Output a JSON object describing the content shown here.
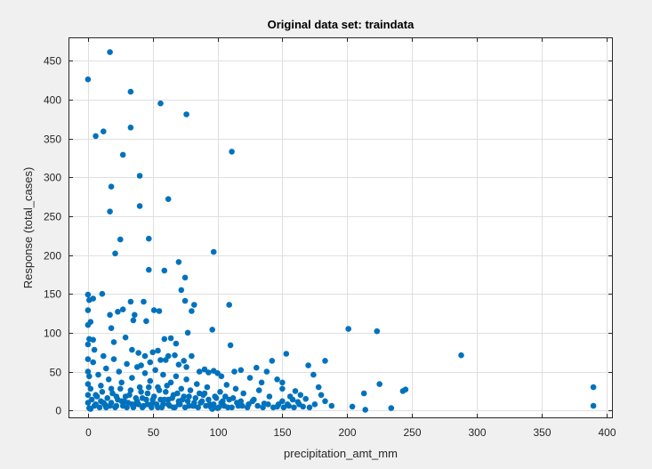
{
  "chart_data": {
    "type": "scatter",
    "title": "Original data set: traindata",
    "xlabel": "precipitation_amt_mm",
    "ylabel": "Response (total_cases)",
    "xlim": [
      -15,
      405
    ],
    "ylim": [
      -10,
      480
    ],
    "xticks": [
      0,
      50,
      100,
      150,
      200,
      250,
      300,
      350,
      400
    ],
    "yticks": [
      0,
      50,
      100,
      150,
      200,
      250,
      300,
      350,
      400,
      450
    ],
    "grid": true,
    "series_color": "#0072bd",
    "series": [
      {
        "points": [
          [
            0,
            426
          ],
          [
            17,
            461
          ],
          [
            33,
            410
          ],
          [
            56,
            395
          ],
          [
            76,
            381
          ],
          [
            111,
            333
          ],
          [
            6,
            353
          ],
          [
            12,
            359
          ],
          [
            33,
            364
          ],
          [
            27,
            329
          ],
          [
            40,
            302
          ],
          [
            18,
            288
          ],
          [
            62,
            272
          ],
          [
            17,
            256
          ],
          [
            40,
            263
          ],
          [
            25,
            220
          ],
          [
            47,
            221
          ],
          [
            97,
            204
          ],
          [
            21,
            202
          ],
          [
            47,
            181
          ],
          [
            59,
            180
          ],
          [
            70,
            191
          ],
          [
            72,
            155
          ],
          [
            75,
            171
          ],
          [
            80,
            128
          ],
          [
            55,
            128
          ],
          [
            51,
            129
          ],
          [
            33,
            140
          ],
          [
            43,
            140
          ],
          [
            0,
            149
          ],
          [
            1,
            142
          ],
          [
            4,
            144
          ],
          [
            11,
            150
          ],
          [
            23,
            127
          ],
          [
            27,
            130
          ],
          [
            17,
            123
          ],
          [
            0,
            129
          ],
          [
            2,
            114
          ],
          [
            0,
            110
          ],
          [
            36,
            123
          ],
          [
            35,
            116
          ],
          [
            45,
            115
          ],
          [
            75,
            141
          ],
          [
            82,
            136
          ],
          [
            109,
            136
          ],
          [
            96,
            104
          ],
          [
            110,
            84
          ],
          [
            77,
            100
          ],
          [
            59,
            92
          ],
          [
            68,
            86
          ],
          [
            64,
            93
          ],
          [
            0,
            85
          ],
          [
            1,
            92
          ],
          [
            4,
            91
          ],
          [
            5,
            78
          ],
          [
            12,
            70
          ],
          [
            18,
            106
          ],
          [
            20,
            88
          ],
          [
            29,
            94
          ],
          [
            34,
            78
          ],
          [
            39,
            74
          ],
          [
            41,
            58
          ],
          [
            44,
            70
          ],
          [
            48,
            62
          ],
          [
            50,
            75
          ],
          [
            54,
            77
          ],
          [
            56,
            65
          ],
          [
            60,
            65
          ],
          [
            62,
            70
          ],
          [
            67,
            71
          ],
          [
            70,
            59
          ],
          [
            74,
            64
          ],
          [
            76,
            56
          ],
          [
            80,
            70
          ],
          [
            86,
            50
          ],
          [
            90,
            53
          ],
          [
            93,
            49
          ],
          [
            97,
            51
          ],
          [
            100,
            48
          ],
          [
            103,
            44
          ],
          [
            107,
            33
          ],
          [
            113,
            50
          ],
          [
            118,
            52
          ],
          [
            125,
            42
          ],
          [
            130,
            55
          ],
          [
            134,
            36
          ],
          [
            138,
            50
          ],
          [
            142,
            64
          ],
          [
            146,
            40
          ],
          [
            150,
            28
          ],
          [
            153,
            73
          ],
          [
            156,
            18
          ],
          [
            160,
            25
          ],
          [
            164,
            20
          ],
          [
            168,
            15
          ],
          [
            170,
            58
          ],
          [
            174,
            46
          ],
          [
            178,
            30
          ],
          [
            183,
            64
          ],
          [
            150,
            36
          ],
          [
            201,
            105
          ],
          [
            223,
            102
          ],
          [
            288,
            71
          ],
          [
            225,
            34
          ],
          [
            243,
            25
          ],
          [
            245,
            27
          ],
          [
            213,
            22
          ],
          [
            204,
            5
          ],
          [
            214,
            1
          ],
          [
            234,
            3
          ],
          [
            188,
            6
          ],
          [
            183,
            12
          ],
          [
            180,
            20
          ],
          [
            175,
            8
          ],
          [
            171,
            4
          ],
          [
            166,
            5
          ],
          [
            162,
            11
          ],
          [
            158,
            14
          ],
          [
            154,
            8
          ],
          [
            150,
            12
          ],
          [
            146,
            5
          ],
          [
            140,
            18
          ],
          [
            136,
            9
          ],
          [
            132,
            26
          ],
          [
            128,
            14
          ],
          [
            124,
            8
          ],
          [
            120,
            22
          ],
          [
            116,
            6
          ],
          [
            112,
            16
          ],
          [
            108,
            4
          ],
          [
            104,
            12
          ],
          [
            100,
            3
          ],
          [
            98,
            18
          ],
          [
            94,
            8
          ],
          [
            90,
            22
          ],
          [
            88,
            12
          ],
          [
            84,
            34
          ],
          [
            82,
            6
          ],
          [
            78,
            18
          ],
          [
            76,
            40
          ],
          [
            72,
            28
          ],
          [
            70,
            12
          ],
          [
            68,
            44
          ],
          [
            66,
            20
          ],
          [
            64,
            36
          ],
          [
            62,
            8
          ],
          [
            60,
            24
          ],
          [
            58,
            46
          ],
          [
            56,
            14
          ],
          [
            54,
            30
          ],
          [
            52,
            52
          ],
          [
            50,
            10
          ],
          [
            48,
            38
          ],
          [
            46,
            22
          ],
          [
            44,
            48
          ],
          [
            42,
            16
          ],
          [
            40,
            30
          ],
          [
            38,
            56
          ],
          [
            36,
            8
          ],
          [
            34,
            42
          ],
          [
            32,
            20
          ],
          [
            30,
            60
          ],
          [
            28,
            12
          ],
          [
            26,
            36
          ],
          [
            24,
            50
          ],
          [
            22,
            18
          ],
          [
            20,
            66
          ],
          [
            18,
            28
          ],
          [
            16,
            40
          ],
          [
            14,
            54
          ],
          [
            12,
            10
          ],
          [
            10,
            32
          ],
          [
            8,
            46
          ],
          [
            6,
            20
          ],
          [
            4,
            62
          ],
          [
            2,
            28
          ],
          [
            1,
            44
          ],
          [
            0,
            10
          ],
          [
            0,
            20
          ],
          [
            0,
            34
          ],
          [
            0,
            50
          ],
          [
            0,
            66
          ],
          [
            1,
            3
          ],
          [
            3,
            14
          ],
          [
            5,
            6
          ],
          [
            7,
            18
          ],
          [
            9,
            4
          ],
          [
            11,
            24
          ],
          [
            13,
            8
          ],
          [
            15,
            16
          ],
          [
            17,
            6
          ],
          [
            19,
            22
          ],
          [
            21,
            4
          ],
          [
            23,
            14
          ],
          [
            25,
            28
          ],
          [
            27,
            6
          ],
          [
            29,
            18
          ],
          [
            31,
            10
          ],
          [
            33,
            26
          ],
          [
            35,
            4
          ],
          [
            37,
            16
          ],
          [
            39,
            8
          ],
          [
            41,
            24
          ],
          [
            43,
            6
          ],
          [
            45,
            14
          ],
          [
            47,
            30
          ],
          [
            49,
            4
          ],
          [
            51,
            18
          ],
          [
            53,
            8
          ],
          [
            55,
            26
          ],
          [
            57,
            4
          ],
          [
            59,
            14
          ],
          [
            61,
            32
          ],
          [
            63,
            6
          ],
          [
            65,
            16
          ],
          [
            67,
            4
          ],
          [
            69,
            22
          ],
          [
            71,
            8
          ],
          [
            73,
            14
          ],
          [
            75,
            4
          ],
          [
            77,
            12
          ],
          [
            79,
            26
          ],
          [
            81,
            6
          ],
          [
            83,
            16
          ],
          [
            85,
            4
          ],
          [
            87,
            10
          ],
          [
            89,
            20
          ],
          [
            91,
            6
          ],
          [
            93,
            14
          ],
          [
            95,
            4
          ],
          [
            97,
            8
          ],
          [
            99,
            16
          ],
          [
            101,
            4
          ],
          [
            103,
            10
          ],
          [
            105,
            6
          ],
          [
            109,
            14
          ],
          [
            111,
            4
          ],
          [
            115,
            10
          ],
          [
            119,
            6
          ],
          [
            123,
            4
          ],
          [
            127,
            12
          ],
          [
            131,
            6
          ],
          [
            135,
            4
          ],
          [
            139,
            8
          ],
          [
            143,
            4
          ],
          [
            147,
            8
          ],
          [
            151,
            4
          ],
          [
            155,
            6
          ],
          [
            159,
            4
          ],
          [
            163,
            8
          ],
          [
            390,
            30
          ],
          [
            390,
            6
          ],
          [
            2,
            2
          ],
          [
            6,
            8
          ],
          [
            10,
            12
          ],
          [
            14,
            4
          ],
          [
            18,
            10
          ],
          [
            22,
            6
          ],
          [
            26,
            12
          ],
          [
            30,
            4
          ],
          [
            34,
            8
          ],
          [
            38,
            12
          ],
          [
            42,
            4
          ],
          [
            46,
            8
          ],
          [
            50,
            14
          ],
          [
            54,
            4
          ],
          [
            58,
            8
          ],
          [
            62,
            14
          ],
          [
            66,
            4
          ],
          [
            70,
            8
          ],
          [
            74,
            18
          ],
          [
            78,
            6
          ],
          [
            82,
            10
          ],
          [
            86,
            22
          ],
          [
            92,
            30
          ],
          [
            96,
            2
          ],
          [
            102,
            24
          ],
          [
            106,
            18
          ],
          [
            114,
            28
          ],
          [
            118,
            12
          ]
        ]
      }
    ]
  }
}
